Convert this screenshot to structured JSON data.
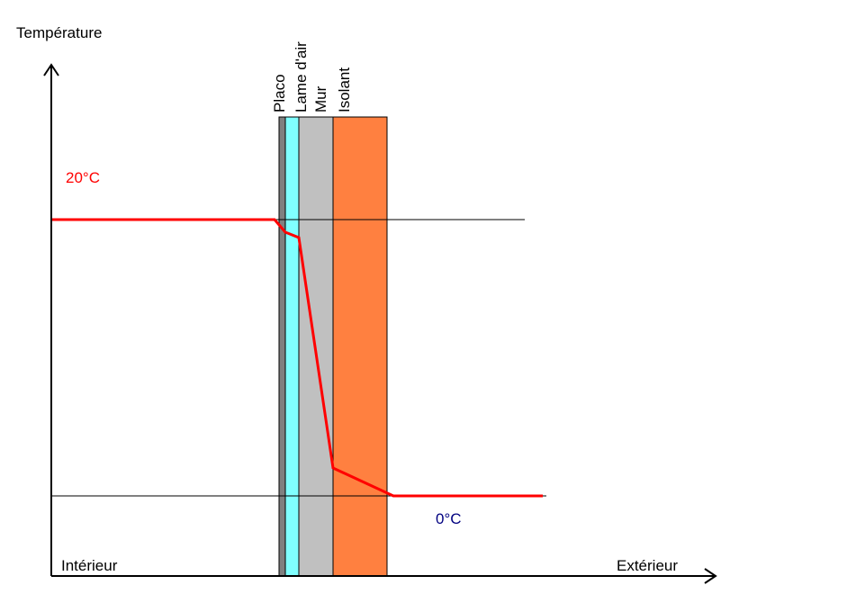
{
  "axis": {
    "y_label": "Température",
    "x_start_label": "Intérieur",
    "x_end_label": "Extérieur"
  },
  "temperatures": {
    "inside": "20°C",
    "outside": "0°C"
  },
  "layers": [
    {
      "label": "Placo"
    },
    {
      "label": "Lame d'air"
    },
    {
      "label": "Mur"
    },
    {
      "label": "Isolant"
    }
  ]
}
